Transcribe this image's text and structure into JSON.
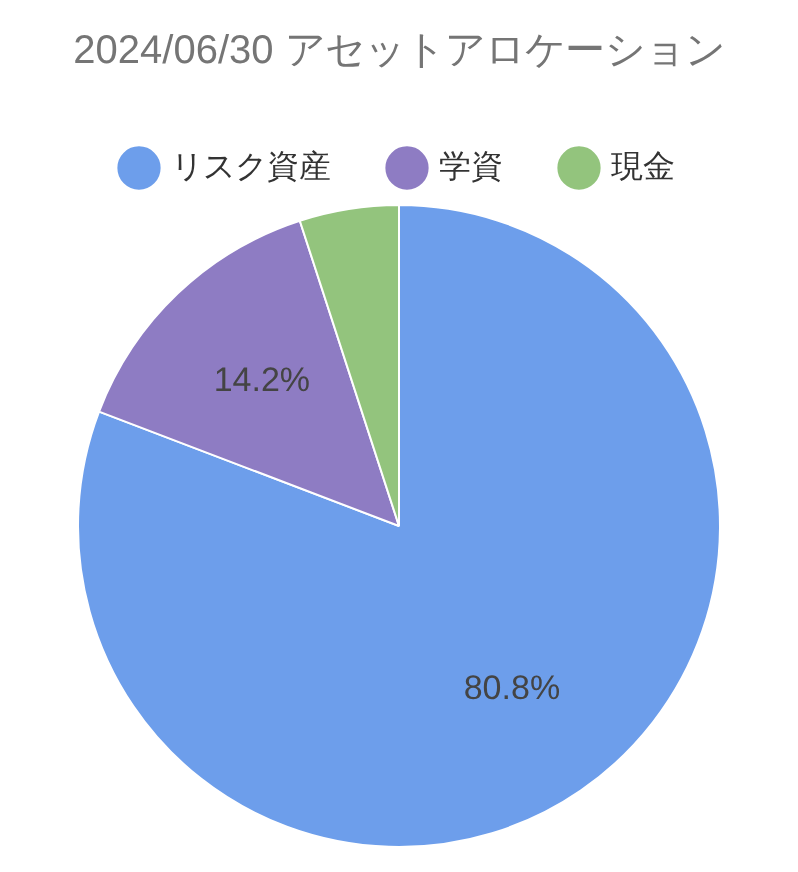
{
  "chart_data": {
    "type": "pie",
    "title": "2024/06/30 アセットアロケーション",
    "categories": [
      "リスク資産",
      "学資",
      "現金"
    ],
    "values": [
      80.8,
      14.2,
      5.0
    ],
    "colors": [
      "#6d9eeb",
      "#8e7cc3",
      "#93c47d"
    ],
    "value_labels": [
      "80.8%",
      "14.2%",
      null
    ],
    "legend": "top"
  }
}
